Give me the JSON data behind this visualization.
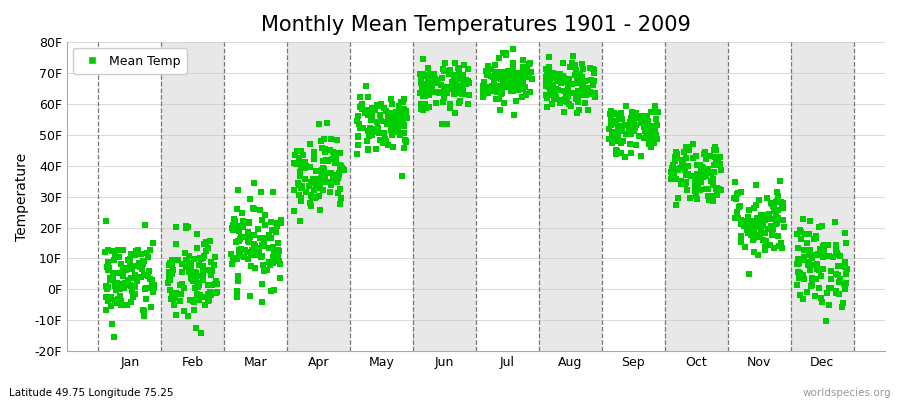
{
  "title": "Monthly Mean Temperatures 1901 - 2009",
  "ylabel": "Temperature",
  "xlabel_bottom_left": "Latitude 49.75 Longitude 75.25",
  "xlabel_bottom_right": "worldspecies.org",
  "legend_label": "Mean Temp",
  "dot_color": "#00cc00",
  "background_color": "#ffffff",
  "stripe_color": "#e8e8e8",
  "ylim": [
    -20,
    80
  ],
  "yticks": [
    -20,
    -10,
    0,
    10,
    20,
    30,
    40,
    50,
    60,
    70,
    80
  ],
  "ytick_labels": [
    "-20F",
    "-10F",
    "0F",
    "10F",
    "20F",
    "30F",
    "40F",
    "50F",
    "60F",
    "70F",
    "80F"
  ],
  "months": [
    "Jan",
    "Feb",
    "Mar",
    "Apr",
    "May",
    "Jun",
    "Jul",
    "Aug",
    "Sep",
    "Oct",
    "Nov",
    "Dec"
  ],
  "monthly_mean_f": [
    3,
    3,
    15,
    38,
    54,
    65,
    68,
    65,
    52,
    38,
    22,
    8
  ],
  "monthly_std_f": [
    7,
    8,
    7,
    6,
    5,
    4,
    4,
    4,
    4,
    5,
    6,
    7
  ],
  "n_years": 109,
  "title_fontsize": 15,
  "axis_label_fontsize": 10,
  "tick_fontsize": 9,
  "legend_fontsize": 9,
  "dot_size": 18,
  "dot_alpha": 1.0,
  "grid_color": "#777777",
  "grid_linestyle": "--",
  "grid_linewidth": 0.9
}
